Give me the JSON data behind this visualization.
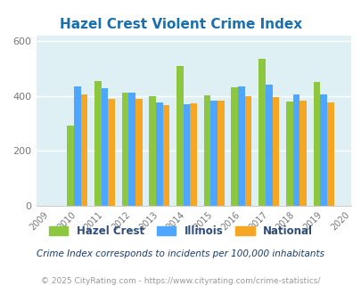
{
  "title": "Hazel Crest Violent Crime Index",
  "years": [
    2009,
    2010,
    2011,
    2012,
    2013,
    2014,
    2015,
    2016,
    2017,
    2018,
    2019,
    2020
  ],
  "data_years": [
    2010,
    2011,
    2012,
    2013,
    2014,
    2015,
    2016,
    2017,
    2018,
    2019
  ],
  "hazel_crest": [
    293,
    455,
    410,
    397,
    507,
    402,
    432,
    534,
    378,
    450
  ],
  "illinois": [
    433,
    427,
    410,
    375,
    370,
    381,
    433,
    441,
    405,
    405
  ],
  "national": [
    404,
    390,
    390,
    365,
    373,
    383,
    399,
    395,
    382,
    376
  ],
  "colors": {
    "hazel_crest": "#8dc63f",
    "illinois": "#4da6ff",
    "national": "#f5a623"
  },
  "background_color": "#dff0f5",
  "ylim": [
    0,
    620
  ],
  "yticks": [
    0,
    200,
    400,
    600
  ],
  "title_color": "#1a6faf",
  "title_fontsize": 11,
  "legend_labels": [
    "Hazel Crest",
    "Illinois",
    "National"
  ],
  "legend_text_color": "#2e4d7b",
  "footnote1": "Crime Index corresponds to incidents per 100,000 inhabitants",
  "footnote2": "© 2025 CityRating.com - https://www.cityrating.com/crime-statistics/",
  "footnote_color1": "#1a3a6b",
  "footnote_color2": "#999999",
  "bar_width": 0.25
}
